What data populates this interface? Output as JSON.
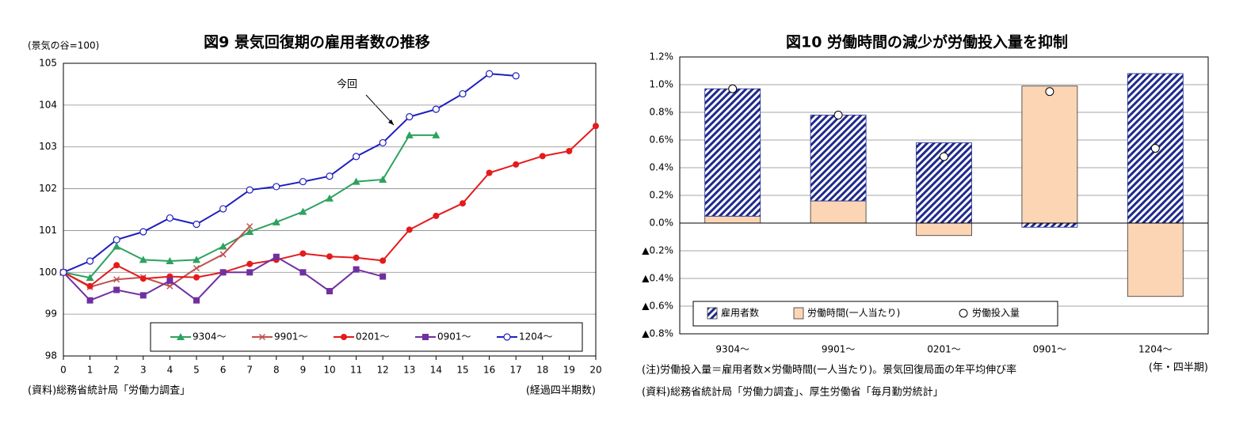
{
  "chart_data": [
    {
      "type": "line",
      "title": "図9 景気回復期の雇用者数の推移",
      "ylabel": "(景気の谷=100)",
      "xlabel": "(経過四半期数)",
      "source": "(資料)総務省統計局「労働力調査」",
      "annotation": "今回",
      "x": [
        0,
        1,
        2,
        3,
        4,
        5,
        6,
        7,
        8,
        9,
        10,
        11,
        12,
        13,
        14,
        15,
        16,
        17,
        18,
        19,
        20
      ],
      "xlim": [
        0,
        20
      ],
      "xticks": [
        0,
        1,
        2,
        3,
        4,
        5,
        6,
        7,
        8,
        9,
        10,
        11,
        12,
        13,
        14,
        15,
        16,
        17,
        18,
        19,
        20
      ],
      "ylim": [
        98,
        105
      ],
      "yticks": [
        98,
        99,
        100,
        101,
        102,
        103,
        104,
        105
      ],
      "grid": true,
      "legend": "bottom",
      "series": [
        {
          "name": "9304〜",
          "color": "#2ca25f",
          "marker": "triangle",
          "values": [
            100,
            99.87,
            100.62,
            100.3,
            100.27,
            100.3,
            100.62,
            100.97,
            101.2,
            101.45,
            101.77,
            102.17,
            102.22,
            103.28,
            103.28,
            null,
            null,
            null,
            null,
            null,
            null
          ]
        },
        {
          "name": "9901〜",
          "color": "#c0504d",
          "marker": "cross",
          "values": [
            100,
            99.65,
            99.83,
            99.88,
            99.67,
            100.1,
            100.43,
            101.1,
            null,
            null,
            null,
            null,
            null,
            null,
            null,
            null,
            null,
            null,
            null,
            null,
            null
          ]
        },
        {
          "name": "0201〜",
          "color": "#e41a1c",
          "marker": "circle",
          "values": [
            100,
            99.67,
            100.17,
            99.85,
            99.9,
            99.88,
            100,
            100.2,
            100.3,
            100.45,
            100.38,
            100.35,
            100.28,
            101.02,
            101.35,
            101.65,
            102.38,
            102.58,
            102.78,
            102.9,
            103.5
          ]
        },
        {
          "name": "0901〜",
          "color": "#7030a0",
          "marker": "square",
          "values": [
            100,
            99.33,
            99.58,
            99.45,
            99.8,
            99.33,
            100,
            100,
            100.37,
            100,
            99.55,
            100.07,
            99.9,
            null,
            null,
            null,
            null,
            null,
            null,
            null,
            null
          ]
        },
        {
          "name": "1204〜",
          "color": "#1f1fbf",
          "marker": "open-circle",
          "values": [
            100,
            100.27,
            100.78,
            100.97,
            101.3,
            101.15,
            101.52,
            101.97,
            102.05,
            102.17,
            102.3,
            102.77,
            103.1,
            103.72,
            103.9,
            104.27,
            104.75,
            104.7,
            null,
            null,
            null
          ]
        }
      ]
    },
    {
      "type": "bar",
      "title": "図10 労働時間の減少が労働投入量を抑制",
      "xlabel": "(年・四半期)",
      "note": "(注)労働投入量＝雇用者数×労働時間(一人当たり)。景気回復局面の年平均伸び率",
      "source": "(資料)総務省統計局「労働力調査」、厚生労働省「毎月勤労統計」",
      "categories": [
        "9304〜",
        "9901〜",
        "0201〜",
        "0901〜",
        "1204〜"
      ],
      "ylim": [
        -0.8,
        1.2
      ],
      "yticks": [
        {
          "value": -0.8,
          "label": "▲0.8%"
        },
        {
          "value": -0.6,
          "label": "▲0.6%"
        },
        {
          "value": -0.4,
          "label": "▲0.4%"
        },
        {
          "value": -0.2,
          "label": "▲0.2%"
        },
        {
          "value": 0,
          "label": "0.0%"
        },
        {
          "value": 0.2,
          "label": "0.2%"
        },
        {
          "value": 0.4,
          "label": "0.4%"
        },
        {
          "value": 0.6,
          "label": "0.6%"
        },
        {
          "value": 0.8,
          "label": "0.8%"
        },
        {
          "value": 1.0,
          "label": "1.0%"
        },
        {
          "value": 1.2,
          "label": "1.2%"
        }
      ],
      "grid": true,
      "legend": "bottom",
      "series": [
        {
          "name": "雇用者数",
          "color": "#1f2a8c",
          "kind": "hatched",
          "values": [
            0.92,
            0.62,
            0.58,
            -0.03,
            1.08
          ]
        },
        {
          "name": "労働時間(一人当たり)",
          "color": "#fcd5b5",
          "kind": "bar",
          "values": [
            0.05,
            0.16,
            -0.09,
            0.99,
            -0.53
          ]
        },
        {
          "name": "労働投入量",
          "color": "#ffffff",
          "kind": "marker",
          "values": [
            0.97,
            0.78,
            0.48,
            0.95,
            0.54
          ]
        }
      ]
    }
  ]
}
